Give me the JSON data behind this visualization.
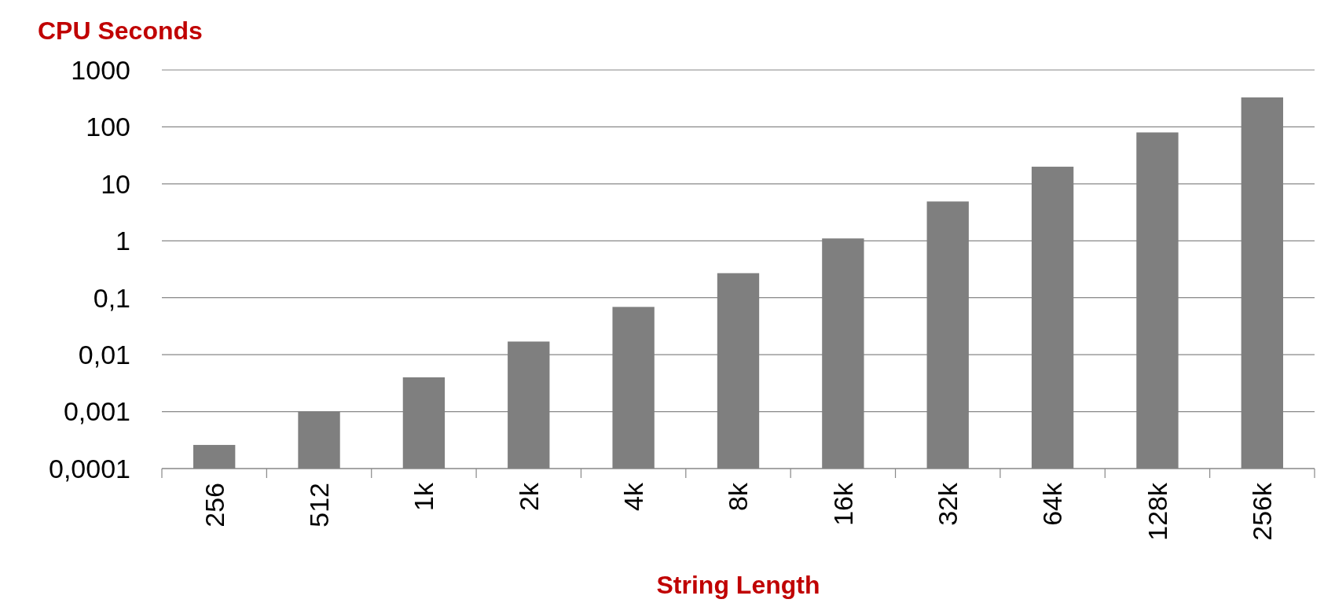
{
  "chart_data": {
    "type": "bar",
    "title": "CPU Seconds",
    "xlabel": "String Length",
    "categories": [
      "256",
      "512",
      "1k",
      "2k",
      "4k",
      "8k",
      "16k",
      "32k",
      "64k",
      "128k",
      "256k"
    ],
    "values": [
      0.00026,
      0.001,
      0.004,
      0.017,
      0.069,
      0.27,
      1.1,
      4.9,
      20,
      80,
      330
    ],
    "color": "#7f7f7f",
    "log": true,
    "grid": "y",
    "ylim": [
      0.0001,
      1000
    ],
    "yticks": [
      {
        "value": 0.0001,
        "label": "0,0001"
      },
      {
        "value": 0.001,
        "label": "0,001"
      },
      {
        "value": 0.01,
        "label": "0,01"
      },
      {
        "value": 0.1,
        "label": "0,1"
      },
      {
        "value": 1,
        "label": "1"
      },
      {
        "value": 10,
        "label": "10"
      },
      {
        "value": 100,
        "label": "100"
      },
      {
        "value": 1000,
        "label": "1000"
      }
    ]
  }
}
